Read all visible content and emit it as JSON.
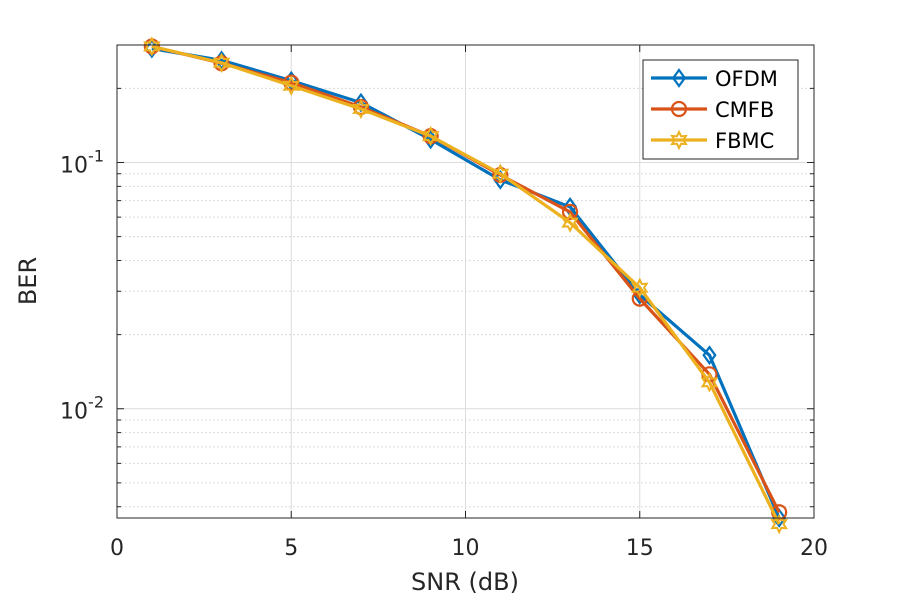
{
  "chart_data": {
    "type": "line",
    "title": "",
    "xlabel": "SNR (dB)",
    "ylabel": "BER",
    "xlim": [
      0,
      20
    ],
    "ylim": [
      0.0036,
      0.3
    ],
    "yscale": "log",
    "grid": true,
    "minor_grid": true,
    "legend_position": "top-right",
    "x_ticks": [
      0,
      5,
      10,
      15,
      20
    ],
    "x_tick_labels": [
      "0",
      "5",
      "10",
      "15",
      "20"
    ],
    "y_ticks": [
      0.01,
      0.1
    ],
    "y_tick_labels": [
      {
        "base": "10",
        "exp": "-2"
      },
      {
        "base": "10",
        "exp": "-1"
      }
    ],
    "x": [
      1,
      3,
      5,
      7,
      9,
      11,
      13,
      15,
      17,
      19
    ],
    "series": [
      {
        "name": "OFDM",
        "color": "#0072bd",
        "marker": "diamond",
        "values": [
          0.29,
          0.26,
          0.215,
          0.175,
          0.124,
          0.085,
          0.066,
          0.029,
          0.0165,
          0.0036
        ]
      },
      {
        "name": "CMFB",
        "color": "#d95319",
        "marker": "circle",
        "values": [
          0.296,
          0.253,
          0.211,
          0.168,
          0.128,
          0.089,
          0.063,
          0.028,
          0.0138,
          0.0038
        ]
      },
      {
        "name": "FBMC",
        "color": "#edb120",
        "marker": "hexagram",
        "values": [
          0.296,
          0.254,
          0.205,
          0.165,
          0.128,
          0.09,
          0.057,
          0.031,
          0.0128,
          0.0034
        ]
      }
    ]
  }
}
